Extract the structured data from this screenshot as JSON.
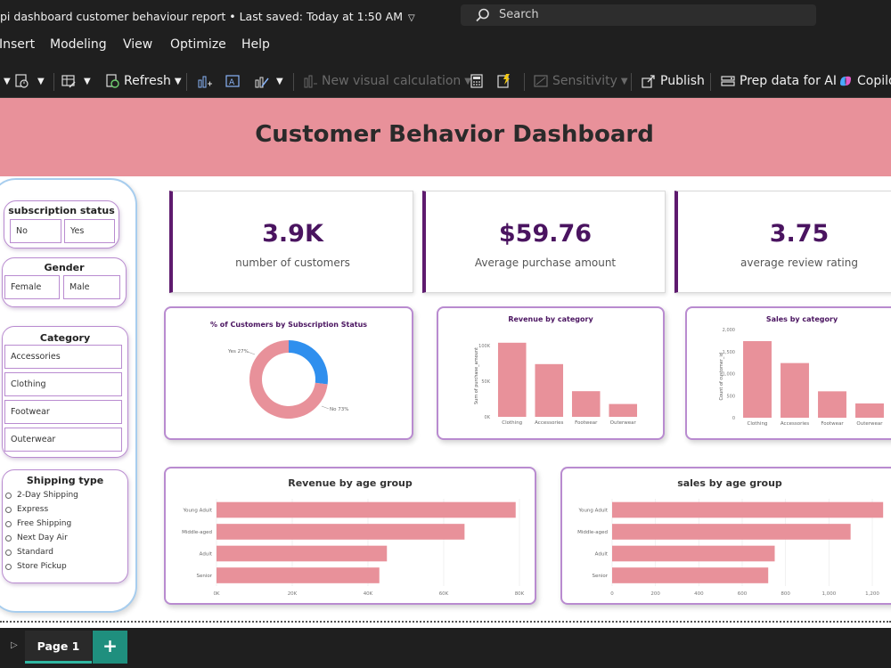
{
  "titlebar": {
    "doc_title": "pi dashboard customer behaviour report • Last saved: Today at 1:50 AM",
    "search_placeholder": "Search"
  },
  "menu": [
    "Insert",
    "Modeling",
    "View",
    "Optimize",
    "Help"
  ],
  "ribbon": {
    "refresh": "Refresh",
    "new_visual_calc": "New visual calculation",
    "sensitivity": "Sensitivity",
    "publish": "Publish",
    "prep_data": "Prep data for AI",
    "copilot": "Copilot"
  },
  "report": {
    "title": "Customer Behavior Dashboard"
  },
  "slicers": {
    "subscription": {
      "title": "subscription status",
      "options": [
        "No",
        "Yes"
      ]
    },
    "gender": {
      "title": "Gender",
      "options": [
        "Female",
        "Male"
      ]
    },
    "category": {
      "title": "Category",
      "options": [
        "Accessories",
        "Clothing",
        "Footwear",
        "Outerwear"
      ]
    },
    "shipping": {
      "title": "Shipping type",
      "options": [
        "2-Day Shipping",
        "Express",
        "Free Shipping",
        "Next Day Air",
        "Standard",
        "Store Pickup"
      ]
    }
  },
  "kpis": [
    {
      "value": "3.9K",
      "label": "number of customers"
    },
    {
      "value": "$59.76",
      "label": "Average purchase amount"
    },
    {
      "value": "3.75",
      "label": "average review rating"
    }
  ],
  "colors": {
    "accent": "#e8919a",
    "kpi_text": "#4a1460",
    "donut_yes": "#2f8fee",
    "bar": "#e8919a"
  },
  "chart_data": [
    {
      "type": "pie",
      "title": "% of Customers by Subscription Status",
      "categories": [
        "Yes",
        "No"
      ],
      "values": [
        27,
        73
      ],
      "labels": [
        "Yes 27%",
        "No 73%"
      ]
    },
    {
      "type": "bar",
      "title": "Revenue by category",
      "categories": [
        "Clothing",
        "Accessories",
        "Footwear",
        "Outerwear"
      ],
      "values": [
        104000,
        74000,
        36000,
        18000
      ],
      "ylabel": "Sum of purchase_amount",
      "yticks": [
        "0K",
        "50K",
        "100K"
      ],
      "ylim": [
        0,
        110000
      ]
    },
    {
      "type": "bar",
      "title": "Sales by category",
      "categories": [
        "Clothing",
        "Accessories",
        "Footwear",
        "Outerwear"
      ],
      "values": [
        1737,
        1240,
        599,
        324
      ],
      "ylabel": "Count of customer_id",
      "yticks": [
        "0",
        "500",
        "1,000",
        "1,500",
        "2,000"
      ],
      "ylim": [
        0,
        2000
      ]
    },
    {
      "type": "bar",
      "orientation": "horizontal",
      "title": "Revenue by age group",
      "categories": [
        "Young Adult",
        "Middle-aged",
        "Adult",
        "Senior"
      ],
      "values": [
        79000,
        65500,
        45000,
        43000
      ],
      "xticks": [
        "0K",
        "20K",
        "40K",
        "60K",
        "80K"
      ],
      "xlim": [
        0,
        80000
      ]
    },
    {
      "type": "bar",
      "orientation": "horizontal",
      "title": "sales by age group",
      "categories": [
        "Young Adult",
        "Middle-aged",
        "Adult",
        "Senior"
      ],
      "values": [
        1250,
        1100,
        750,
        720
      ],
      "xticks": [
        "0",
        "200",
        "400",
        "600",
        "800",
        "1,000",
        "1,200"
      ],
      "xlim": [
        0,
        1200
      ]
    }
  ],
  "tabs": {
    "page1": "Page 1",
    "add": "+"
  }
}
